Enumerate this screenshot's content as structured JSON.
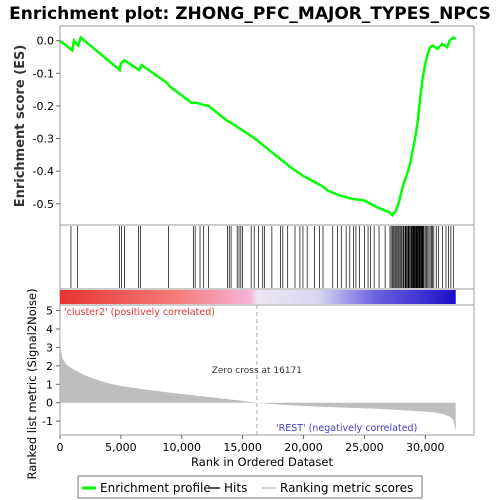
{
  "chart_data": [
    {
      "panel": "enrichment",
      "type": "line",
      "title": "Enrichment plot: ZHONG_PFC_MAJOR_TYPES_NPCS",
      "ylabel": "Enrichment score (ES)",
      "ylim": [
        -0.565,
        0.045
      ],
      "yticks": [
        0.0,
        -0.1,
        -0.2,
        -0.3,
        -0.4,
        -0.5
      ],
      "ytick_labels": [
        "0.0",
        "-0.1",
        "-0.2",
        "-0.3",
        "-0.4",
        "-0.5"
      ],
      "color": "#00ff00",
      "x": [
        0,
        1000,
        1150,
        1500,
        1700,
        4900,
        5000,
        5300,
        6300,
        6500,
        6700,
        8800,
        9000,
        10800,
        11200,
        11600,
        12200,
        13700,
        14200,
        15000,
        16000,
        17000,
        18000,
        19000,
        20000,
        21000,
        21500,
        22000,
        23000,
        24000,
        25000,
        26000,
        27000,
        27300,
        27600,
        27800,
        28000,
        28200,
        28500,
        28800,
        29000,
        29200,
        29400,
        29600,
        29800,
        30000,
        30200,
        30400,
        30600,
        31000,
        31400,
        31800,
        32000,
        32300,
        32500
      ],
      "y": [
        0.0,
        -0.03,
        0.0,
        -0.015,
        0.01,
        -0.09,
        -0.07,
        -0.06,
        -0.085,
        -0.09,
        -0.075,
        -0.13,
        -0.14,
        -0.19,
        -0.19,
        -0.195,
        -0.2,
        -0.245,
        -0.255,
        -0.275,
        -0.3,
        -0.33,
        -0.36,
        -0.39,
        -0.415,
        -0.435,
        -0.445,
        -0.46,
        -0.475,
        -0.485,
        -0.49,
        -0.51,
        -0.525,
        -0.535,
        -0.52,
        -0.5,
        -0.47,
        -0.44,
        -0.41,
        -0.37,
        -0.33,
        -0.29,
        -0.24,
        -0.17,
        -0.11,
        -0.07,
        -0.04,
        -0.02,
        -0.015,
        -0.025,
        -0.01,
        -0.02,
        0.0,
        0.01,
        0.005
      ]
    },
    {
      "panel": "hits",
      "type": "scatter",
      "ylabel": "",
      "hits": [
        900,
        1450,
        4900,
        5050,
        5300,
        6450,
        6600,
        8900,
        10950,
        11100,
        11500,
        11800,
        12200,
        13750,
        13900,
        14050,
        14550,
        14700,
        14850,
        15000,
        15700,
        15950,
        16300,
        16650,
        16800,
        17400,
        18100,
        18300,
        18700,
        19300,
        19700,
        19950,
        20300,
        20900,
        21300,
        21600,
        22400,
        22800,
        23100,
        23500,
        23800,
        24100,
        24300,
        24600,
        25000,
        25300,
        25500,
        25800,
        26200,
        26700,
        27100,
        27200,
        27300,
        27400,
        27450,
        27550,
        27650,
        27700,
        27800,
        27900,
        27950,
        28050,
        28100,
        28200,
        28250,
        28350,
        28400,
        28450,
        28550,
        28600,
        28650,
        28700,
        28800,
        28850,
        28900,
        28950,
        29000,
        29050,
        29100,
        29150,
        29200,
        29250,
        29300,
        29350,
        29400,
        29450,
        29500,
        29550,
        29600,
        29650,
        29700,
        29750,
        29800,
        29850,
        29900,
        30000,
        30100,
        30200,
        30300,
        30400,
        30500,
        30600,
        30700,
        30900,
        31100,
        31400,
        31700,
        31900,
        32100,
        32300
      ]
    },
    {
      "panel": "ranked_metric",
      "type": "area",
      "xlabel": "Rank in Ordered Dataset",
      "ylabel": "Ranked list metric (Signal2Noise)",
      "xlim": [
        0,
        34000
      ],
      "ylim": [
        -1.75,
        5.3
      ],
      "xticks": [
        0,
        5000,
        10000,
        15000,
        20000,
        25000,
        30000
      ],
      "xtick_labels": [
        "0",
        "5,000",
        "10,000",
        "15,000",
        "20,000",
        "25,000",
        "30,000"
      ],
      "yticks": [
        5,
        4,
        3,
        2,
        1,
        0,
        -1
      ],
      "ytick_labels": [
        "5",
        "4",
        "3",
        "2",
        "1",
        "0",
        "-1"
      ],
      "x": [
        0,
        50,
        200,
        500,
        1000,
        2000,
        3000,
        4000,
        5000,
        7000,
        9000,
        11000,
        13000,
        15000,
        16171,
        18000,
        20000,
        22000,
        24000,
        26000,
        28000,
        30000,
        31000,
        31500,
        32000,
        32300,
        32450,
        32500
      ],
      "y": [
        5.0,
        3.0,
        2.4,
        2.1,
        1.85,
        1.5,
        1.25,
        1.05,
        0.9,
        0.72,
        0.55,
        0.4,
        0.25,
        0.1,
        0.0,
        -0.1,
        -0.17,
        -0.23,
        -0.28,
        -0.33,
        -0.4,
        -0.48,
        -0.55,
        -0.62,
        -0.75,
        -0.95,
        -1.4,
        -1.55
      ],
      "fill_color": "#bebebe",
      "zero_cross_label": "Zero cross at 16171",
      "zero_cross": 16171,
      "pos_label": "'cluster2' (positively correlated)",
      "neg_label": "'REST' (negatively correlated)"
    }
  ],
  "legend": {
    "items": [
      {
        "label": "Enrichment profile",
        "color": "#00ff00"
      },
      {
        "label": "Hits",
        "color": "#555555"
      },
      {
        "label": "Ranking metric scores",
        "color": "#bebebe"
      }
    ]
  }
}
